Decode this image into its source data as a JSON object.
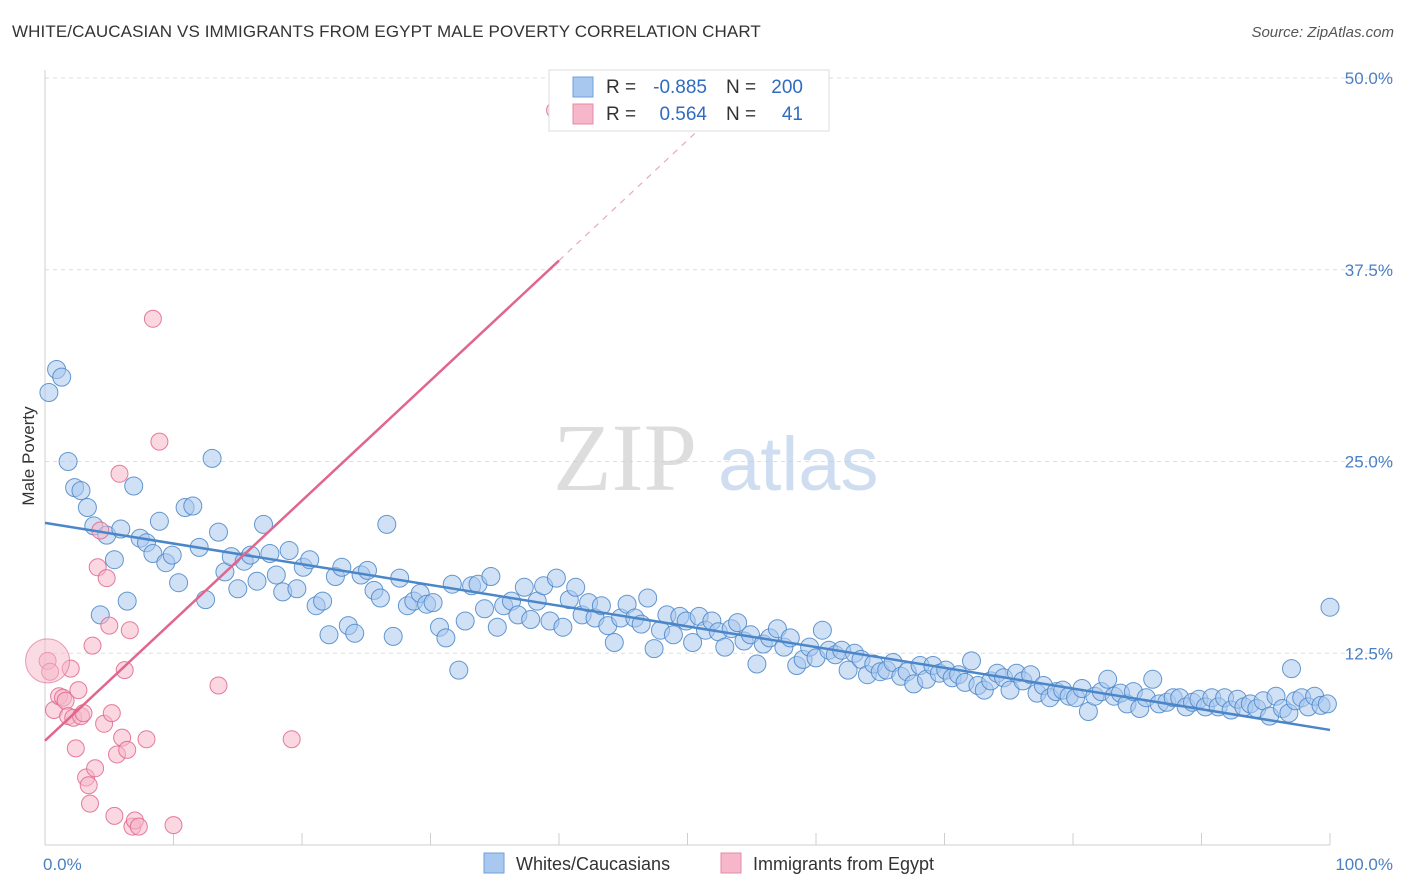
{
  "title": "WHITE/CAUCASIAN VS IMMIGRANTS FROM EGYPT MALE POVERTY CORRELATION CHART",
  "source": "Source: ZipAtlas.com",
  "watermark": {
    "zip": "ZIP",
    "atlas": "atlas"
  },
  "chart_data": {
    "type": "scatter",
    "title": "WHITE/CAUCASIAN VS IMMIGRANTS FROM EGYPT MALE POVERTY CORRELATION CHART",
    "xlabel": "",
    "ylabel": "Male Poverty",
    "xlim": [
      0,
      100
    ],
    "ylim": [
      0,
      50
    ],
    "x_tick_labels": [
      "0.0%",
      "100.0%"
    ],
    "y_ticks": [
      12.5,
      25.0,
      37.5,
      50.0
    ],
    "y_tick_labels": [
      "12.5%",
      "25.0%",
      "37.5%",
      "50.0%"
    ],
    "grid": true,
    "legend_position": "bottom",
    "stats": [
      {
        "r_label": "R =",
        "r": "-0.885",
        "n_label": "N =",
        "n": "200"
      },
      {
        "r_label": "R =",
        "r": "0.564",
        "n_label": "N =",
        "n": "41"
      }
    ],
    "series": [
      {
        "name": "Whites/Caucasians",
        "color": "#4a86c8",
        "fill": "#a9c8ef",
        "trend": {
          "x": [
            0,
            100
          ],
          "y": [
            21.0,
            7.5
          ],
          "dashed_extension": false
        },
        "points": [
          [
            0.3,
            29.5
          ],
          [
            0.9,
            31.0
          ],
          [
            1.3,
            30.5
          ],
          [
            1.8,
            25.0
          ],
          [
            2.3,
            23.3
          ],
          [
            2.8,
            23.1
          ],
          [
            3.3,
            22.0
          ],
          [
            3.8,
            20.8
          ],
          [
            4.3,
            15.0
          ],
          [
            4.8,
            20.2
          ],
          [
            5.4,
            18.6
          ],
          [
            5.9,
            20.6
          ],
          [
            6.4,
            15.9
          ],
          [
            6.9,
            23.4
          ],
          [
            7.4,
            20.0
          ],
          [
            7.9,
            19.7
          ],
          [
            8.4,
            19.0
          ],
          [
            8.9,
            21.1
          ],
          [
            9.4,
            18.4
          ],
          [
            9.9,
            18.9
          ],
          [
            10.4,
            17.1
          ],
          [
            10.9,
            22.0
          ],
          [
            11.5,
            22.1
          ],
          [
            12.0,
            19.4
          ],
          [
            12.5,
            16.0
          ],
          [
            13.0,
            25.2
          ],
          [
            13.5,
            20.4
          ],
          [
            14.0,
            17.8
          ],
          [
            14.5,
            18.8
          ],
          [
            15.0,
            16.7
          ],
          [
            15.5,
            18.5
          ],
          [
            16.0,
            18.9
          ],
          [
            16.5,
            17.2
          ],
          [
            17.0,
            20.9
          ],
          [
            17.5,
            19.0
          ],
          [
            18.0,
            17.6
          ],
          [
            18.5,
            16.5
          ],
          [
            19.0,
            19.2
          ],
          [
            19.6,
            16.7
          ],
          [
            20.1,
            18.1
          ],
          [
            20.6,
            18.6
          ],
          [
            21.1,
            15.6
          ],
          [
            21.6,
            15.9
          ],
          [
            22.1,
            13.7
          ],
          [
            22.6,
            17.5
          ],
          [
            23.1,
            18.1
          ],
          [
            23.6,
            14.3
          ],
          [
            24.1,
            13.8
          ],
          [
            24.6,
            17.6
          ],
          [
            25.1,
            17.9
          ],
          [
            25.6,
            16.6
          ],
          [
            26.1,
            16.1
          ],
          [
            26.6,
            20.9
          ],
          [
            27.1,
            13.6
          ],
          [
            27.6,
            17.4
          ],
          [
            28.2,
            15.6
          ],
          [
            28.7,
            15.9
          ],
          [
            29.2,
            16.4
          ],
          [
            29.7,
            15.7
          ],
          [
            30.2,
            15.8
          ],
          [
            30.7,
            14.2
          ],
          [
            31.2,
            13.5
          ],
          [
            31.7,
            17.0
          ],
          [
            32.2,
            11.4
          ],
          [
            32.7,
            14.6
          ],
          [
            33.2,
            16.9
          ],
          [
            33.7,
            17.0
          ],
          [
            34.2,
            15.4
          ],
          [
            34.7,
            17.5
          ],
          [
            35.2,
            14.2
          ],
          [
            35.7,
            15.6
          ],
          [
            36.3,
            15.9
          ],
          [
            36.8,
            15.0
          ],
          [
            37.3,
            16.8
          ],
          [
            37.8,
            14.7
          ],
          [
            38.3,
            15.9
          ],
          [
            38.8,
            16.9
          ],
          [
            39.3,
            14.6
          ],
          [
            39.8,
            17.4
          ],
          [
            40.3,
            14.2
          ],
          [
            40.8,
            16.0
          ],
          [
            41.3,
            16.8
          ],
          [
            41.8,
            15.0
          ],
          [
            42.3,
            15.8
          ],
          [
            42.8,
            14.8
          ],
          [
            43.3,
            15.6
          ],
          [
            43.8,
            14.3
          ],
          [
            44.3,
            13.2
          ],
          [
            44.8,
            14.8
          ],
          [
            45.3,
            15.7
          ],
          [
            45.9,
            14.8
          ],
          [
            46.4,
            14.4
          ],
          [
            46.9,
            16.1
          ],
          [
            47.4,
            12.8
          ],
          [
            47.9,
            14.0
          ],
          [
            48.4,
            15.0
          ],
          [
            48.9,
            13.7
          ],
          [
            49.4,
            14.9
          ],
          [
            49.9,
            14.6
          ],
          [
            50.4,
            13.2
          ],
          [
            50.9,
            14.9
          ],
          [
            51.4,
            14.0
          ],
          [
            51.9,
            14.6
          ],
          [
            52.4,
            13.9
          ],
          [
            52.9,
            12.9
          ],
          [
            53.4,
            14.1
          ],
          [
            53.9,
            14.5
          ],
          [
            54.4,
            13.3
          ],
          [
            54.9,
            13.7
          ],
          [
            55.4,
            11.8
          ],
          [
            55.9,
            13.1
          ],
          [
            56.4,
            13.5
          ],
          [
            57.0,
            14.1
          ],
          [
            57.5,
            12.9
          ],
          [
            58.0,
            13.5
          ],
          [
            58.5,
            11.7
          ],
          [
            59.0,
            12.1
          ],
          [
            59.5,
            12.9
          ],
          [
            60.0,
            12.2
          ],
          [
            60.5,
            14.0
          ],
          [
            61.0,
            12.7
          ],
          [
            61.5,
            12.4
          ],
          [
            62.0,
            12.7
          ],
          [
            62.5,
            11.4
          ],
          [
            63.0,
            12.5
          ],
          [
            63.5,
            12.1
          ],
          [
            64.0,
            11.1
          ],
          [
            64.5,
            11.8
          ],
          [
            65.0,
            11.3
          ],
          [
            65.5,
            11.4
          ],
          [
            66.0,
            11.9
          ],
          [
            66.6,
            11.0
          ],
          [
            67.1,
            11.3
          ],
          [
            67.6,
            10.5
          ],
          [
            68.1,
            11.7
          ],
          [
            68.6,
            10.8
          ],
          [
            69.1,
            11.7
          ],
          [
            69.6,
            11.2
          ],
          [
            70.1,
            11.4
          ],
          [
            70.6,
            10.9
          ],
          [
            71.1,
            11.1
          ],
          [
            71.6,
            10.6
          ],
          [
            72.1,
            12.0
          ],
          [
            72.6,
            10.4
          ],
          [
            73.1,
            10.1
          ],
          [
            73.6,
            10.7
          ],
          [
            74.1,
            11.2
          ],
          [
            74.6,
            10.9
          ],
          [
            75.1,
            10.1
          ],
          [
            75.6,
            11.2
          ],
          [
            76.1,
            10.7
          ],
          [
            76.7,
            11.1
          ],
          [
            77.2,
            9.9
          ],
          [
            77.7,
            10.4
          ],
          [
            78.2,
            9.6
          ],
          [
            78.7,
            10.0
          ],
          [
            79.2,
            10.1
          ],
          [
            79.7,
            9.7
          ],
          [
            80.2,
            9.6
          ],
          [
            80.7,
            10.2
          ],
          [
            81.2,
            8.7
          ],
          [
            81.7,
            9.7
          ],
          [
            82.2,
            10.0
          ],
          [
            82.7,
            10.8
          ],
          [
            83.2,
            9.7
          ],
          [
            83.7,
            9.9
          ],
          [
            84.2,
            9.2
          ],
          [
            84.7,
            10.0
          ],
          [
            85.2,
            8.9
          ],
          [
            85.7,
            9.6
          ],
          [
            86.2,
            10.8
          ],
          [
            86.7,
            9.2
          ],
          [
            87.3,
            9.3
          ],
          [
            87.8,
            9.6
          ],
          [
            88.3,
            9.6
          ],
          [
            88.8,
            9.0
          ],
          [
            89.3,
            9.3
          ],
          [
            89.8,
            9.5
          ],
          [
            90.3,
            9.0
          ],
          [
            90.8,
            9.6
          ],
          [
            91.3,
            9.0
          ],
          [
            91.8,
            9.6
          ],
          [
            92.3,
            8.8
          ],
          [
            92.8,
            9.5
          ],
          [
            93.3,
            9.0
          ],
          [
            93.8,
            9.2
          ],
          [
            94.3,
            8.9
          ],
          [
            94.8,
            9.4
          ],
          [
            95.3,
            8.4
          ],
          [
            95.8,
            9.7
          ],
          [
            96.3,
            8.9
          ],
          [
            96.8,
            8.6
          ],
          [
            97.3,
            9.4
          ],
          [
            97.8,
            9.6
          ],
          [
            98.3,
            9.0
          ],
          [
            98.8,
            9.7
          ],
          [
            99.3,
            9.1
          ],
          [
            99.8,
            9.2
          ],
          [
            100.0,
            15.5
          ],
          [
            97.0,
            11.5
          ]
        ]
      },
      {
        "name": "Immigrants from Egypt",
        "color": "#e0668e",
        "fill": "#f5b7c9",
        "trend": {
          "x": [
            0,
            40
          ],
          "y": [
            6.8,
            38.1
          ],
          "dashed_extension": {
            "x": [
              40,
              52.5
            ],
            "y": [
              38.1,
              47.9
            ]
          }
        },
        "points": [
          [
            0.2,
            12.0
          ],
          [
            0.4,
            11.3
          ],
          [
            0.7,
            8.8
          ],
          [
            1.1,
            9.7
          ],
          [
            1.4,
            9.6
          ],
          [
            1.6,
            9.4
          ],
          [
            1.8,
            8.4
          ],
          [
            2.0,
            11.5
          ],
          [
            2.2,
            8.3
          ],
          [
            2.4,
            6.3
          ],
          [
            2.6,
            10.1
          ],
          [
            2.8,
            8.4
          ],
          [
            3.0,
            8.6
          ],
          [
            3.2,
            4.4
          ],
          [
            3.4,
            3.9
          ],
          [
            3.5,
            2.7
          ],
          [
            3.7,
            13.0
          ],
          [
            3.9,
            5.0
          ],
          [
            4.1,
            18.1
          ],
          [
            4.3,
            20.5
          ],
          [
            4.6,
            7.9
          ],
          [
            4.8,
            17.4
          ],
          [
            5.0,
            14.3
          ],
          [
            5.2,
            8.6
          ],
          [
            5.4,
            1.9
          ],
          [
            5.6,
            5.9
          ],
          [
            5.8,
            24.2
          ],
          [
            6.0,
            7.0
          ],
          [
            6.2,
            11.4
          ],
          [
            6.4,
            6.2
          ],
          [
            6.6,
            14.0
          ],
          [
            6.8,
            1.2
          ],
          [
            7.0,
            1.6
          ],
          [
            7.3,
            1.2
          ],
          [
            7.9,
            6.9
          ],
          [
            8.4,
            34.3
          ],
          [
            8.9,
            26.3
          ],
          [
            10.0,
            1.3
          ],
          [
            13.5,
            10.4
          ],
          [
            19.2,
            6.9
          ],
          [
            39.7,
            47.9
          ]
        ]
      }
    ]
  }
}
